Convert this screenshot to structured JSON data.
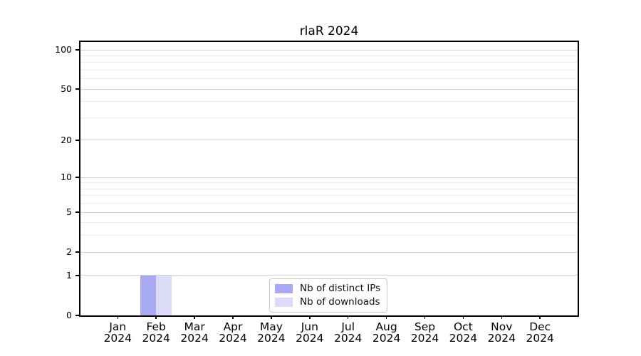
{
  "chart_data": {
    "type": "bar",
    "title": "rlaR 2024",
    "categories": [
      "Jan 2024",
      "Feb 2024",
      "Mar 2024",
      "Apr 2024",
      "May 2024",
      "Jun 2024",
      "Jul 2024",
      "Aug 2024",
      "Sep 2024",
      "Oct 2024",
      "Nov 2024",
      "Dec 2024"
    ],
    "x_axis": {
      "tick_line1": [
        "Jan",
        "Feb",
        "Mar",
        "Apr",
        "May",
        "Jun",
        "Jul",
        "Aug",
        "Sep",
        "Oct",
        "Nov",
        "Dec"
      ],
      "tick_line2": "2024"
    },
    "series": [
      {
        "name": "Nb of distinct IPs",
        "color": "#a9a9f2",
        "values": [
          0,
          1,
          0,
          0,
          0,
          0,
          0,
          0,
          0,
          0,
          0,
          0
        ]
      },
      {
        "name": "Nb of downloads",
        "color": "#dcdcf9",
        "values": [
          0,
          1,
          0,
          0,
          0,
          0,
          0,
          0,
          0,
          0,
          0,
          0
        ]
      }
    ],
    "yscale": "log1p",
    "ylim": [
      0,
      100
    ],
    "yticks": [
      0,
      1,
      2,
      5,
      10,
      20,
      50,
      100
    ],
    "minor_yticks": [
      3,
      4,
      6,
      7,
      8,
      9,
      30,
      40,
      60,
      70,
      80,
      90
    ],
    "grid": true,
    "legend_position": "lower center inside",
    "colors": {
      "spine": "#000000",
      "major_grid": "#d2d2d2",
      "minor_grid": "#ededed",
      "text": "#000000",
      "background": "#ffffff"
    }
  }
}
